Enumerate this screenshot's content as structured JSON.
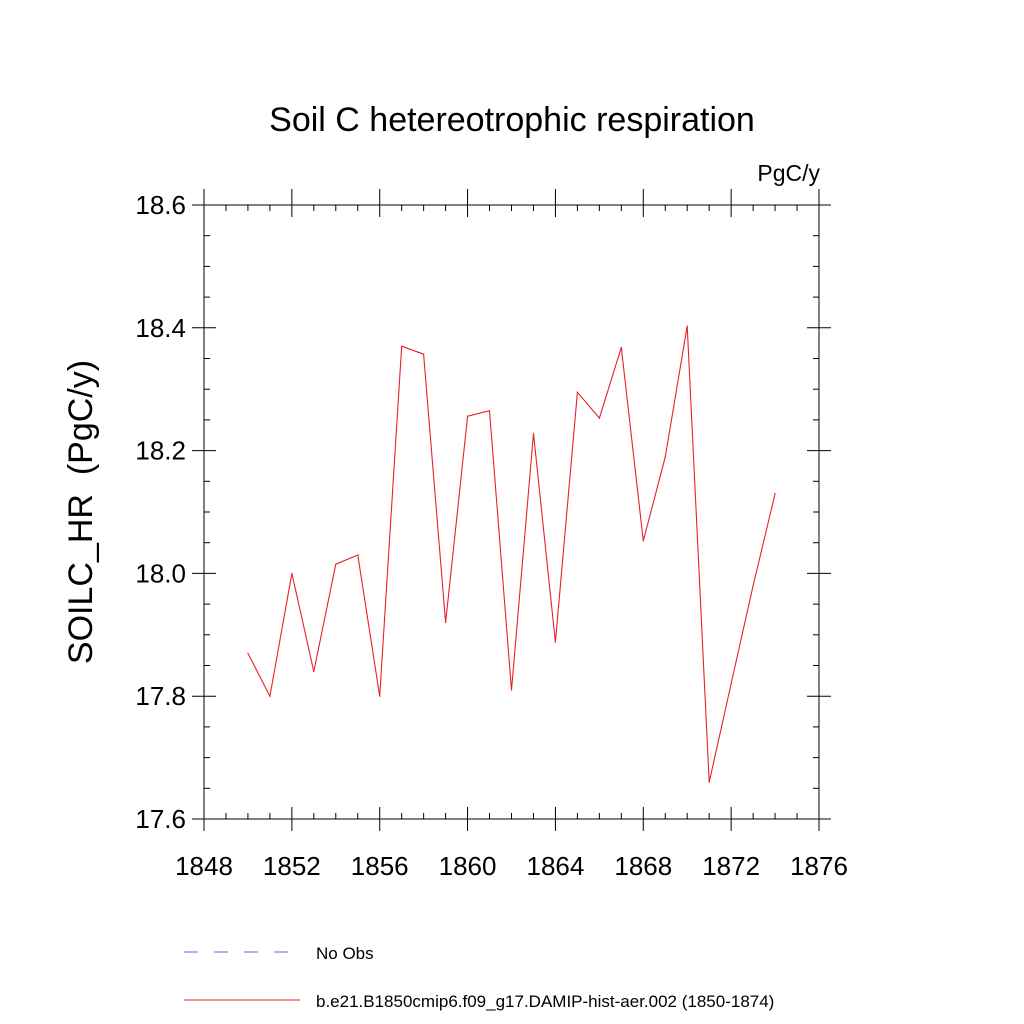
{
  "chart_data": {
    "type": "line",
    "title": "Soil C hetereotrophic respiration",
    "units": "PgC/y",
    "ylabel": "SOILC_HR  (PgC/y)",
    "xlabel": "",
    "xlim": [
      1848,
      1876
    ],
    "ylim": [
      17.6,
      18.6
    ],
    "x_ticks": [
      "1848",
      "1852",
      "1856",
      "1860",
      "1864",
      "1868",
      "1872",
      "1876"
    ],
    "y_ticks": [
      "17.6",
      "17.8",
      "18.0",
      "18.2",
      "18.4",
      "18.6"
    ],
    "grid": false,
    "legend_position": "bottom",
    "series": [
      {
        "name": "No Obs",
        "color": "#6a6ad8",
        "dash": "dashed",
        "x": [],
        "values": []
      },
      {
        "name": "b.e21.B1850cmip6.f09_g17.DAMIP-hist-aer.002 (1850-1874)",
        "color": "#e8202a",
        "dash": "solid",
        "x": [
          1850,
          1851,
          1852,
          1853,
          1854,
          1855,
          1856,
          1857,
          1858,
          1859,
          1860,
          1861,
          1862,
          1863,
          1864,
          1865,
          1866,
          1867,
          1868,
          1869,
          1870,
          1871,
          1872,
          1873,
          1874
        ],
        "values": [
          17.87,
          17.8,
          18.0,
          17.84,
          18.015,
          18.03,
          17.8,
          18.37,
          18.357,
          17.92,
          18.256,
          18.265,
          17.81,
          18.228,
          17.888,
          18.295,
          18.253,
          18.368,
          18.053,
          18.19,
          18.403,
          17.66,
          17.82,
          17.98,
          18.13
        ]
      }
    ]
  }
}
